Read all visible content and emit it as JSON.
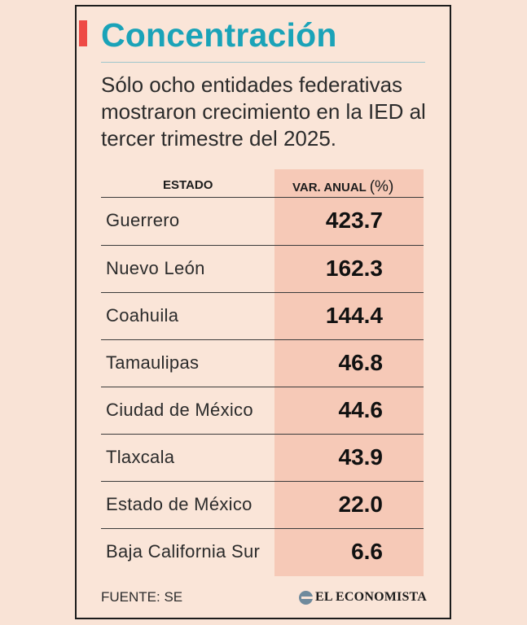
{
  "header": {
    "title": "Concentración",
    "subtitle": "Sólo ocho entidades federativas mostraron crecimiento en la IED al tercer trimestre del 2025."
  },
  "table": {
    "col_state": "ESTADO",
    "col_value": "VAR. ANUAL",
    "col_value_unit": "(%)",
    "rows": [
      {
        "state": "Guerrero",
        "value": "423.7"
      },
      {
        "state": "Nuevo León",
        "value": "162.3"
      },
      {
        "state": "Coahuila",
        "value": "144.4"
      },
      {
        "state": "Tamaulipas",
        "value": "46.8"
      },
      {
        "state": "Ciudad de México",
        "value": "44.6"
      },
      {
        "state": "Tlaxcala",
        "value": "43.9"
      },
      {
        "state": "Estado de México",
        "value": "22.0"
      },
      {
        "state": "Baja California Sur",
        "value": "6.6"
      }
    ]
  },
  "footer": {
    "source": "FUENTE: SE",
    "brand": "EL ECONOMISTA"
  },
  "colors": {
    "background": "#f9e3d6",
    "title": "#1aa3b8",
    "accent": "#ee4a45",
    "column_shade": "#f6c9b7"
  }
}
